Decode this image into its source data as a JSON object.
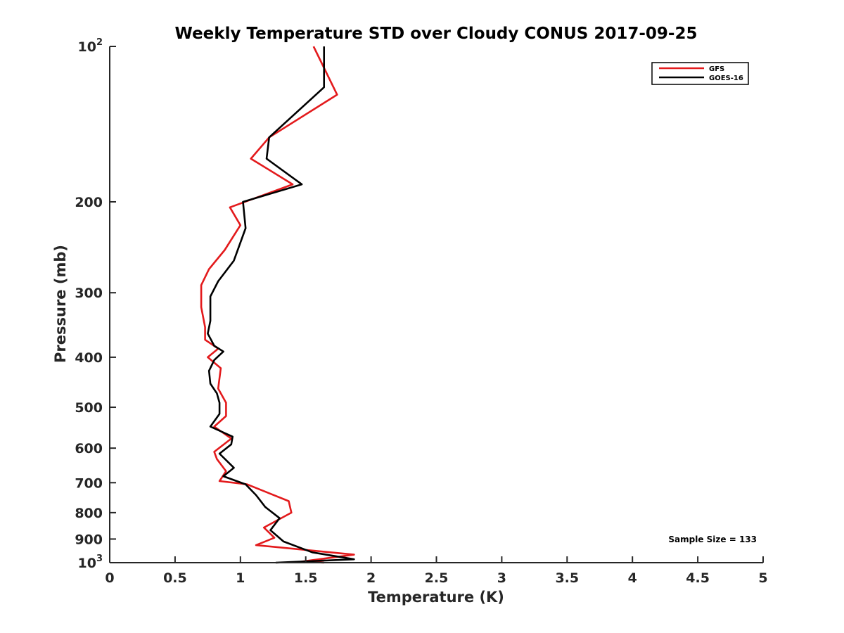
{
  "chart_data": {
    "type": "line",
    "title": "Weekly Temperature STD over Cloudy CONUS 2017-09-25",
    "xlabel": "Temperature (K)",
    "ylabel": "Pressure (mb)",
    "xlim": [
      0,
      5
    ],
    "ylim": [
      100,
      1000
    ],
    "y_scale": "log",
    "y_reversed": true,
    "grid": false,
    "legend_position": "top-right",
    "x_ticks": [
      "0",
      "0.5",
      "1",
      "1.5",
      "2",
      "2.5",
      "3",
      "3.5",
      "4",
      "4.5",
      "5"
    ],
    "y_ticks": [
      {
        "value": 100,
        "base": "10",
        "exp": "2"
      },
      {
        "value": 200,
        "label": "200"
      },
      {
        "value": 300,
        "label": "300"
      },
      {
        "value": 400,
        "label": "400"
      },
      {
        "value": 500,
        "label": "500"
      },
      {
        "value": 600,
        "label": "600"
      },
      {
        "value": 700,
        "label": "700"
      },
      {
        "value": 800,
        "label": "800"
      },
      {
        "value": 900,
        "label": "900"
      },
      {
        "value": 1000,
        "base": "10",
        "exp": "3"
      }
    ],
    "annotation": "Sample Size = 133",
    "series": [
      {
        "name": "GFS",
        "color": "#e31a1c",
        "points": [
          [
            1.56,
            100
          ],
          [
            1.74,
            124
          ],
          [
            1.22,
            150
          ],
          [
            1.08,
            165
          ],
          [
            1.4,
            185
          ],
          [
            0.92,
            205
          ],
          [
            1.0,
            222
          ],
          [
            0.88,
            248
          ],
          [
            0.76,
            270
          ],
          [
            0.7,
            290
          ],
          [
            0.7,
            320
          ],
          [
            0.73,
            350
          ],
          [
            0.73,
            370
          ],
          [
            0.83,
            385
          ],
          [
            0.75,
            400
          ],
          [
            0.85,
            420
          ],
          [
            0.83,
            460
          ],
          [
            0.89,
            490
          ],
          [
            0.89,
            520
          ],
          [
            0.8,
            545
          ],
          [
            0.93,
            575
          ],
          [
            0.8,
            610
          ],
          [
            0.82,
            630
          ],
          [
            0.89,
            665
          ],
          [
            0.84,
            695
          ],
          [
            1.05,
            705
          ],
          [
            1.37,
            760
          ],
          [
            1.39,
            800
          ],
          [
            1.18,
            855
          ],
          [
            1.26,
            895
          ],
          [
            1.12,
            925
          ],
          [
            1.87,
            965
          ],
          [
            1.47,
            995
          ],
          [
            1.64,
            1000
          ]
        ]
      },
      {
        "name": "GOES-16",
        "color": "#000000",
        "points": [
          [
            1.64,
            100
          ],
          [
            1.64,
            120
          ],
          [
            1.22,
            150
          ],
          [
            1.2,
            165
          ],
          [
            1.47,
            185
          ],
          [
            1.02,
            200
          ],
          [
            1.04,
            225
          ],
          [
            0.95,
            260
          ],
          [
            0.83,
            285
          ],
          [
            0.77,
            305
          ],
          [
            0.77,
            340
          ],
          [
            0.75,
            360
          ],
          [
            0.8,
            380
          ],
          [
            0.87,
            390
          ],
          [
            0.8,
            405
          ],
          [
            0.76,
            425
          ],
          [
            0.77,
            450
          ],
          [
            0.82,
            470
          ],
          [
            0.84,
            490
          ],
          [
            0.84,
            515
          ],
          [
            0.77,
            545
          ],
          [
            0.94,
            570
          ],
          [
            0.93,
            590
          ],
          [
            0.84,
            615
          ],
          [
            0.95,
            655
          ],
          [
            0.87,
            680
          ],
          [
            1.04,
            705
          ],
          [
            1.12,
            740
          ],
          [
            1.19,
            780
          ],
          [
            1.3,
            820
          ],
          [
            1.23,
            865
          ],
          [
            1.33,
            910
          ],
          [
            1.55,
            955
          ],
          [
            1.87,
            985
          ],
          [
            1.27,
            1000
          ]
        ]
      }
    ]
  }
}
